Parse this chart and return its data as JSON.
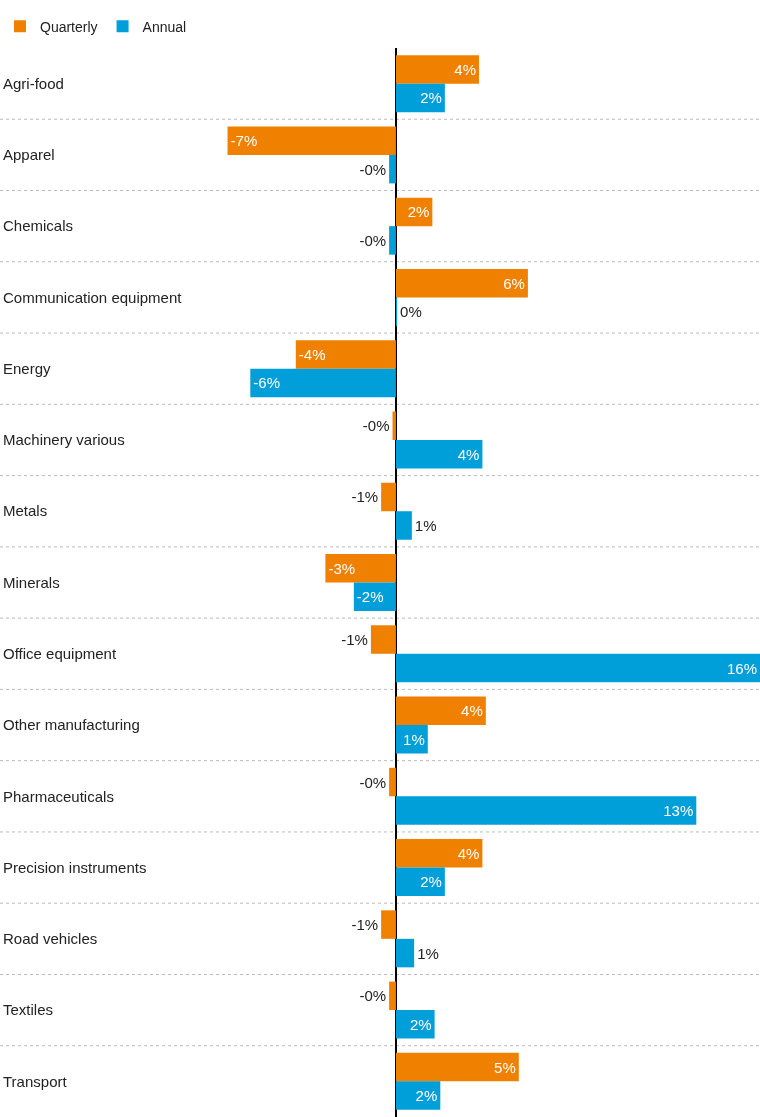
{
  "chart_data": {
    "type": "bar",
    "orientation": "horizontal",
    "categories": [
      "Agri-food",
      "Apparel",
      "Chemicals",
      "Communication equipment",
      "Energy",
      "Machinery various",
      "Metals",
      "Minerals",
      "Office equipment",
      "Other manufacturing",
      "Pharmaceuticals",
      "Precision instruments",
      "Road vehicles",
      "Textiles",
      "Transport"
    ],
    "series": [
      {
        "name": "Quarterly",
        "color": "#f08000",
        "values": [
          3.65,
          -7.4,
          1.6,
          5.8,
          -4.4,
          -0.15,
          -0.65,
          -3.1,
          -1.1,
          3.95,
          -0.3,
          3.8,
          -0.65,
          -0.3,
          5.4
        ],
        "value_labels": [
          "4%",
          "-7%",
          "2%",
          "6%",
          "-4%",
          "-0%",
          "-1%",
          "-3%",
          "-1%",
          "4%",
          "-0%",
          "4%",
          "-1%",
          "-0%",
          "5%"
        ]
      },
      {
        "name": "Annual",
        "color": "#009fda",
        "values": [
          2.15,
          -0.3,
          -0.3,
          0.05,
          -6.4,
          3.8,
          0.7,
          -1.85,
          16.0,
          1.4,
          13.2,
          2.15,
          0.8,
          1.7,
          1.95
        ],
        "value_labels": [
          "2%",
          "-0%",
          "-0%",
          "0%",
          "-6%",
          "4%",
          "1%",
          "-2%",
          "16%",
          "1%",
          "13%",
          "2%",
          "1%",
          "2%",
          "2%"
        ]
      }
    ],
    "xlim": [
      -17.4,
      16.0
    ],
    "tick_labels": "y",
    "grid": "y",
    "legend": "top left"
  }
}
